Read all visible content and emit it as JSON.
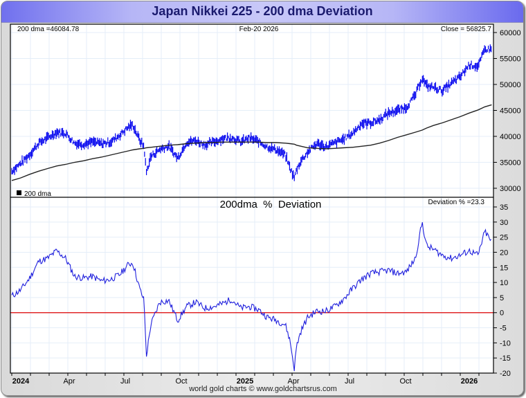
{
  "title": "Japan Nikkei 225 - 200 dma Deviation",
  "footer": "world gold charts © www.goldchartsrus.com",
  "colors": {
    "price": "#0000ee",
    "dma": "#222222",
    "deviation": "#2020dd",
    "zero_line": "#dd0000",
    "grid": "#e4eef8"
  },
  "chart_data": [
    {
      "type": "line",
      "panel": "upper",
      "title": "",
      "date_label": "Feb-20  2026",
      "dma_label": "200 dma =46084.78",
      "close_label": "Close = 56825.7",
      "legend": [
        {
          "name": "200 dma",
          "symbol": "black-square"
        }
      ],
      "legend_placement": "bottom-left",
      "ylim": [
        29000,
        62000
      ],
      "yticks": [
        30000,
        35000,
        40000,
        45000,
        50000,
        55000,
        60000
      ],
      "ytick_labels": [
        "30000",
        "35000",
        "40000",
        "45000",
        "50000",
        "55000",
        "60000"
      ],
      "x": [
        2024.0,
        2024.04,
        2024.08,
        2024.12,
        2024.16,
        2024.2,
        2024.24,
        2024.28,
        2024.32,
        2024.36,
        2024.4,
        2024.44,
        2024.48,
        2024.52,
        2024.54,
        2024.57,
        2024.59,
        2024.6,
        2024.62,
        2024.66,
        2024.7,
        2024.74,
        2024.78,
        2024.82,
        2024.86,
        2024.9,
        2024.94,
        2024.98,
        2025.02,
        2025.06,
        2025.1,
        2025.14,
        2025.18,
        2025.22,
        2025.24,
        2025.26,
        2025.27,
        2025.29,
        2025.32,
        2025.36,
        2025.4,
        2025.44,
        2025.48,
        2025.52,
        2025.56,
        2025.6,
        2025.64,
        2025.68,
        2025.72,
        2025.76,
        2025.8,
        2025.83,
        2025.85,
        2025.88,
        2025.92,
        2025.96,
        2026.0,
        2026.04,
        2026.08,
        2026.11,
        2026.14
      ],
      "series": [
        {
          "name": "Close",
          "values": [
            33300,
            34800,
            36500,
            38700,
            39700,
            40800,
            40600,
            38700,
            38500,
            38900,
            38600,
            38900,
            40200,
            41800,
            42200,
            39300,
            38000,
            33000,
            36100,
            37500,
            38100,
            35800,
            38900,
            39200,
            38400,
            38900,
            39600,
            39800,
            38900,
            39700,
            39000,
            38000,
            37400,
            36400,
            34000,
            32000,
            33600,
            35300,
            37000,
            38600,
            38000,
            38700,
            39500,
            40600,
            42500,
            42600,
            43200,
            44500,
            45000,
            45600,
            48000,
            51300,
            49700,
            49500,
            48800,
            50200,
            51500,
            53800,
            53500,
            56800,
            56800
          ]
        },
        {
          "name": "200 dma",
          "values": [
            31500,
            32000,
            32700,
            33300,
            33800,
            34300,
            34600,
            35000,
            35300,
            35700,
            36000,
            36400,
            36800,
            37200,
            37400,
            37600,
            37700,
            37800,
            37900,
            38100,
            38300,
            38400,
            38600,
            38700,
            38800,
            38800,
            38900,
            38900,
            38900,
            38900,
            38900,
            38800,
            38800,
            38700,
            38600,
            38500,
            38300,
            38100,
            37800,
            37700,
            37600,
            37700,
            37800,
            37900,
            38100,
            38300,
            38700,
            39200,
            39800,
            40300,
            40800,
            41200,
            41600,
            42100,
            42600,
            43200,
            43800,
            44500,
            45100,
            45700,
            46084
          ]
        }
      ]
    },
    {
      "type": "line",
      "panel": "lower",
      "title": "200dma  %  Deviation",
      "value_label": "Deviation % =23.3",
      "ylim": [
        -20,
        38
      ],
      "yticks": [
        -20,
        -15,
        -10,
        -5,
        0,
        5,
        10,
        15,
        20,
        25,
        30,
        35
      ],
      "ytick_labels": [
        "-20",
        "-15",
        "-10",
        "-5",
        "0",
        "5",
        "10",
        "15",
        "20",
        "25",
        "30",
        "35"
      ],
      "reference_line": 0,
      "x": [
        2024.0,
        2024.04,
        2024.08,
        2024.12,
        2024.16,
        2024.2,
        2024.24,
        2024.28,
        2024.32,
        2024.36,
        2024.4,
        2024.44,
        2024.48,
        2024.52,
        2024.54,
        2024.57,
        2024.59,
        2024.6,
        2024.62,
        2024.66,
        2024.7,
        2024.74,
        2024.78,
        2024.82,
        2024.86,
        2024.9,
        2024.94,
        2024.98,
        2025.02,
        2025.06,
        2025.1,
        2025.14,
        2025.18,
        2025.22,
        2025.24,
        2025.26,
        2025.27,
        2025.29,
        2025.32,
        2025.36,
        2025.4,
        2025.44,
        2025.48,
        2025.52,
        2025.56,
        2025.6,
        2025.64,
        2025.68,
        2025.72,
        2025.76,
        2025.8,
        2025.83,
        2025.85,
        2025.88,
        2025.92,
        2025.96,
        2026.0,
        2026.04,
        2026.08,
        2026.11,
        2026.14
      ],
      "series": [
        {
          "name": "Deviation %",
          "values": [
            5.5,
            7.5,
            11.5,
            17,
            18,
            20.5,
            18,
            12,
            11.5,
            12,
            10.5,
            11,
            12.5,
            16,
            16.5,
            8,
            4,
            -14.5,
            -4,
            3.5,
            4,
            -2.5,
            2,
            3.5,
            1.5,
            2,
            3,
            4.5,
            1.5,
            2,
            1,
            -1.5,
            -2.5,
            -4,
            -9,
            -18.5,
            -11,
            -6,
            -1.5,
            0.5,
            0.5,
            2,
            4.5,
            8,
            11,
            13,
            13.5,
            14,
            13,
            13.5,
            18,
            30,
            22,
            21,
            19,
            18,
            19,
            20.5,
            19,
            27,
            23.3
          ]
        }
      ]
    }
  ],
  "x_axis": {
    "tick_labels": [
      {
        "label": "2024",
        "x": 2024.0,
        "bold": true
      },
      {
        "label": "Apr",
        "x": 2024.25,
        "bold": false
      },
      {
        "label": "Jul",
        "x": 2024.5,
        "bold": false
      },
      {
        "label": "Oct",
        "x": 2024.75,
        "bold": false
      },
      {
        "label": "2025",
        "x": 2025.0,
        "bold": true
      },
      {
        "label": "Apr",
        "x": 2025.25,
        "bold": false
      },
      {
        "label": "Jul",
        "x": 2025.5,
        "bold": false
      },
      {
        "label": "Oct",
        "x": 2025.75,
        "bold": false
      },
      {
        "label": "2026",
        "x": 2026.0,
        "bold": true
      }
    ],
    "xlim": [
      2023.995,
      2026.145
    ]
  }
}
